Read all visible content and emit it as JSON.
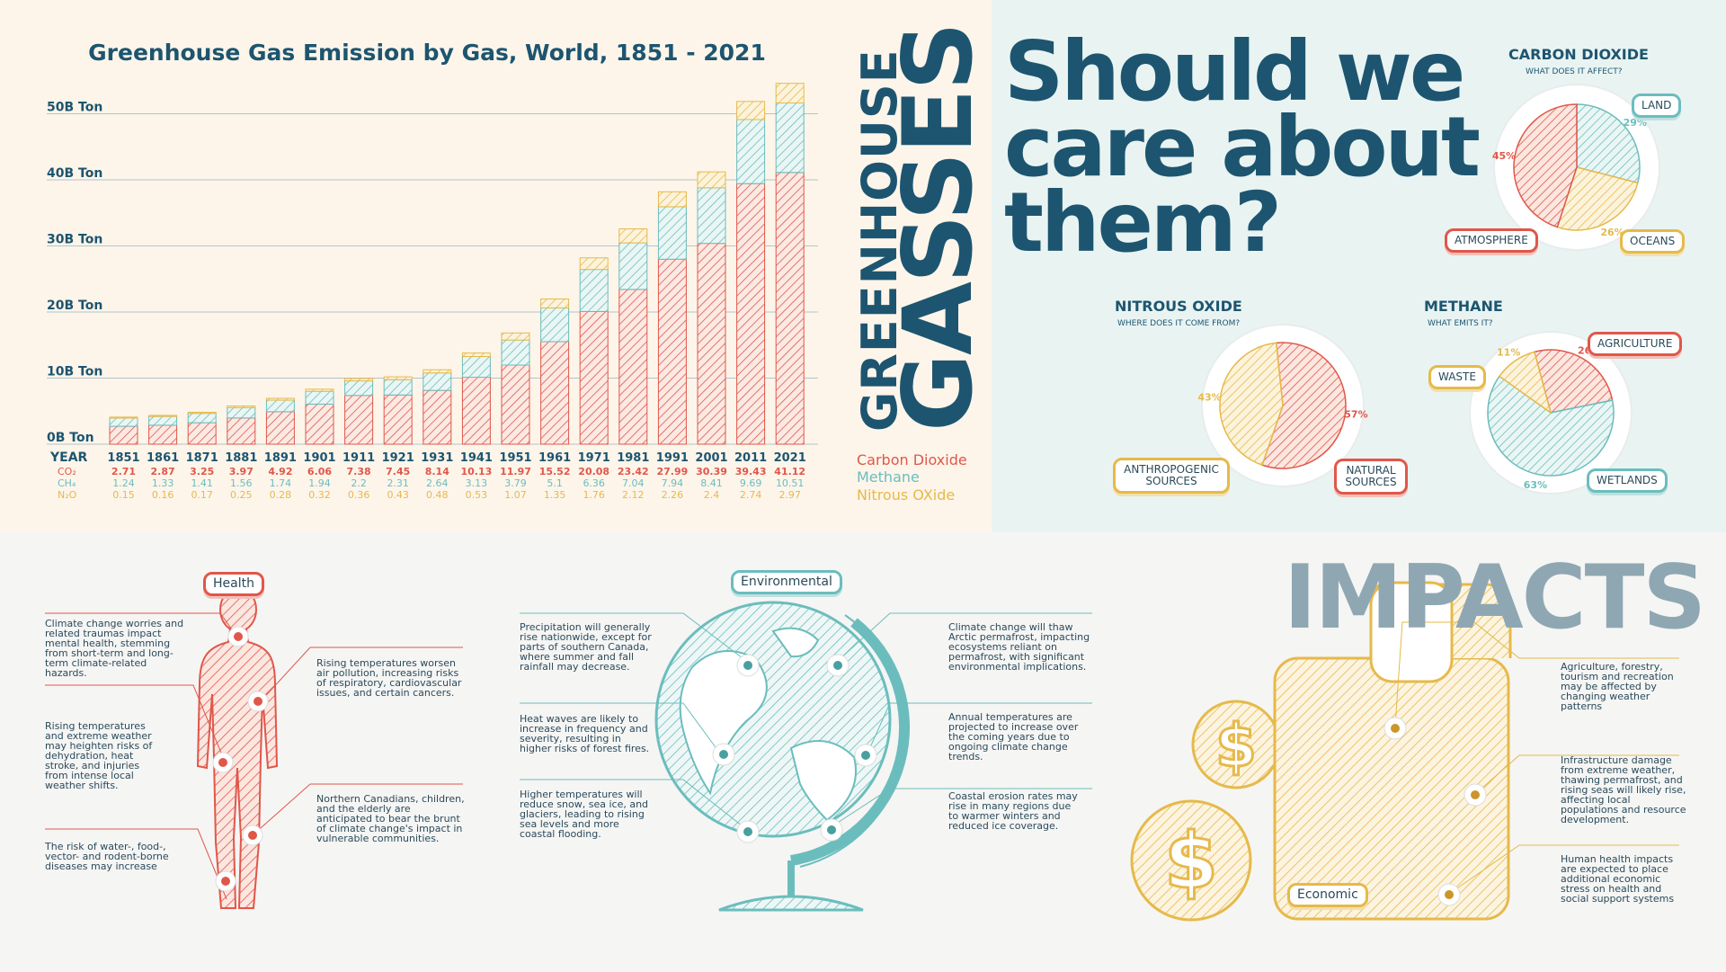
{
  "chart_data": {
    "type": "bar",
    "title": "Greenhouse Gas Emission by Gas, World, 1851 - 2021",
    "x_header": "YEAR",
    "categories": [
      "1851",
      "1861",
      "1871",
      "1881",
      "1891",
      "1901",
      "1911",
      "1921",
      "1931",
      "1941",
      "1951",
      "1961",
      "1971",
      "1981",
      "1991",
      "2001",
      "2011",
      "2021"
    ],
    "series": [
      {
        "name": "Carbon Dioxide",
        "row_label": "CO₂",
        "color": "#e0574a",
        "values": [
          2.71,
          2.87,
          3.25,
          3.97,
          4.92,
          6.06,
          7.38,
          7.45,
          8.14,
          10.13,
          11.97,
          15.52,
          20.08,
          23.42,
          27.99,
          30.39,
          39.43,
          41.12
        ]
      },
      {
        "name": "Methane",
        "row_label": "CH₄",
        "color": "#6bbdbd",
        "values": [
          1.24,
          1.33,
          1.41,
          1.56,
          1.74,
          1.94,
          2.2,
          2.31,
          2.64,
          3.13,
          3.79,
          5.1,
          6.36,
          7.04,
          7.94,
          8.41,
          9.69,
          10.51
        ]
      },
      {
        "name": "Nitrous OXide",
        "row_label": "N₂O",
        "color": "#e6b94a",
        "values": [
          0.15,
          0.16,
          0.17,
          0.25,
          0.28,
          0.32,
          0.36,
          0.43,
          0.48,
          0.53,
          1.07,
          1.35,
          1.76,
          2.12,
          2.26,
          2.4,
          2.74,
          2.97
        ]
      }
    ],
    "value_labels": {
      "co2": [
        "2.71",
        "2.87",
        "3.25",
        "3.97",
        "4.92",
        "6.06",
        "7.38",
        "7.45",
        "8.14",
        "10.13",
        "11.97",
        "15.52",
        "20.08",
        "23.42",
        "27.99",
        "30.39",
        "39.43",
        "41.12"
      ],
      "ch4": [
        "1.24",
        "1.33",
        "1.41",
        "1.56",
        "1.74",
        "1.94",
        "2.2",
        "2.31",
        "2.64",
        "3.13",
        "3.79",
        "5.1",
        "6.36",
        "7.04",
        "7.94",
        "8.41",
        "9.69",
        "10.51"
      ],
      "n2o": [
        "0.15",
        "0.16",
        "0.17",
        "0.25",
        "0.28",
        "0.32",
        "0.36",
        "0.43",
        "0.48",
        "0.53",
        "1.07",
        "1.35",
        "1.76",
        "2.12",
        "2.26",
        "2.4",
        "2.74",
        "2.97"
      ]
    },
    "y_ticks": [
      "0B Ton",
      "10B Ton",
      "20B Ton",
      "30B Ton",
      "40B Ton",
      "50B Ton"
    ],
    "ylim": [
      0,
      55
    ],
    "grid": true,
    "stacked": true
  },
  "side_title": {
    "line1": "GREENHOUSE",
    "line2": "GASSES"
  },
  "legend": [
    "Carbon Dioxide",
    "Methane",
    "Nitrous OXide"
  ],
  "care": {
    "headline": [
      "Should we",
      "care about",
      "them?"
    ],
    "co2": {
      "title": "CARBON DIOXIDE",
      "sub": "WHAT DOES IT AFFECT?",
      "slices": [
        {
          "label": "LAND",
          "pct": "29%",
          "value": 29
        },
        {
          "label": "OCEANS",
          "pct": "26%",
          "value": 26
        },
        {
          "label": "ATMOSPHERE",
          "pct": "45%",
          "value": 45
        }
      ]
    },
    "n2o": {
      "title": "NITROUS OXIDE",
      "sub": "WHERE DOES IT COME FROM?",
      "slices": [
        {
          "label": "NATURAL SOURCES",
          "pct": "57%",
          "value": 57
        },
        {
          "label": "ANTHROPOGENIC SOURCES",
          "pct": "43%",
          "value": 43
        }
      ]
    },
    "ch4": {
      "title": "METHANE",
      "sub": "WHAT EMITS IT?",
      "slices": [
        {
          "label": "AGRICULTURE",
          "pct": "26%",
          "value": 26
        },
        {
          "label": "WETLANDS",
          "pct": "63%",
          "value": 63
        },
        {
          "label": "WASTE",
          "pct": "11%",
          "value": 11
        }
      ]
    },
    "colors": {
      "red": "#e0574a",
      "teal": "#6bbdbd",
      "yellow": "#e6b94a",
      "navy": "#1d5570"
    }
  },
  "impacts": {
    "title": "IMPACTS",
    "health": {
      "tag": "Health",
      "notes": [
        "Climate change worries and related traumas impact mental health, stemming from short-term and long-term climate-related hazards.",
        "Rising temperatures and extreme weather may heighten risks of dehydration, heat stroke, and injuries from intense local weather shifts.",
        "The risk of water-, food-, vector- and rodent-borne diseases may increase",
        "Rising temperatures worsen air pollution, increasing risks of respiratory, cardiovascular issues, and certain cancers.",
        "Northern Canadians, children, and the elderly are anticipated to bear the brunt of climate change's impact in vulnerable communities."
      ]
    },
    "environmental": {
      "tag": "Environmental",
      "notes": [
        "Precipitation will generally rise nationwide, except for parts of southern Canada, where summer and fall rainfall may decrease.",
        "Heat waves are likely to increase in frequency and severity, resulting in higher risks of forest fires.",
        "Higher temperatures will reduce snow, sea ice, and glaciers, leading to rising sea levels and more coastal flooding.",
        "Climate change will thaw Arctic permafrost, impacting ecosystems reliant on permafrost, with significant environmental implications.",
        "Annual temperatures are projected to increase over the coming years due to ongoing climate change trends.",
        "Coastal erosion rates may rise in many regions due to warmer winters and reduced ice coverage."
      ]
    },
    "economic": {
      "tag": "Economic",
      "notes": [
        "Agriculture, forestry, tourism and recreation may be affected by changing weather patterns",
        "Infrastructure damage from extreme weather, thawing permafrost, and rising seas will likely rise, affecting local populations and resource development.",
        "Human health impacts are expected to place additional economic stress on health and social support systems"
      ],
      "icons": [
        "dollar-coin-icon",
        "wallet-icon"
      ]
    }
  }
}
